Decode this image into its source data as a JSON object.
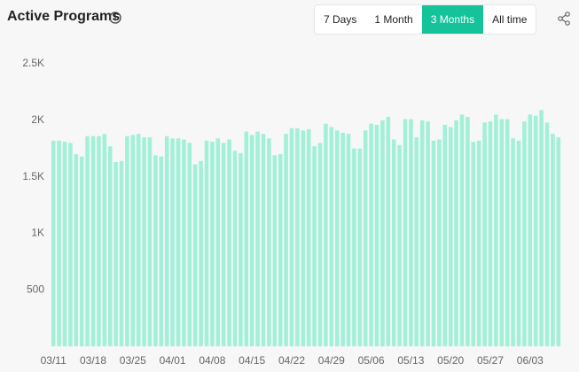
{
  "header": {
    "title": "Active Programs",
    "tabs": [
      "7 Days",
      "1 Month",
      "3 Months",
      "All time"
    ],
    "active_tab": 2
  },
  "chart_data": {
    "type": "bar",
    "color": "#a3f0d9",
    "categories": [
      "03/11",
      null,
      null,
      null,
      null,
      null,
      null,
      "03/18",
      null,
      null,
      null,
      null,
      null,
      null,
      "03/25",
      null,
      null,
      null,
      null,
      null,
      null,
      "04/01",
      null,
      null,
      null,
      null,
      null,
      null,
      "04/08",
      null,
      null,
      null,
      null,
      null,
      null,
      "04/15",
      null,
      null,
      null,
      null,
      null,
      null,
      "04/22",
      null,
      null,
      null,
      null,
      null,
      null,
      "04/29",
      null,
      null,
      null,
      null,
      null,
      null,
      "05/06",
      null,
      null,
      null,
      null,
      null,
      null,
      "05/13",
      null,
      null,
      null,
      null,
      null,
      null,
      "05/20",
      null,
      null,
      null,
      null,
      null,
      null,
      "05/27",
      null,
      null,
      null,
      null,
      null,
      null,
      "06/03",
      null,
      null,
      null,
      null,
      null
    ],
    "values": [
      1820,
      1820,
      1810,
      1800,
      1700,
      1680,
      1860,
      1860,
      1860,
      1880,
      1770,
      1630,
      1640,
      1860,
      1870,
      1880,
      1850,
      1850,
      1690,
      1680,
      1860,
      1840,
      1840,
      1830,
      1800,
      1610,
      1640,
      1820,
      1810,
      1840,
      1800,
      1830,
      1730,
      1710,
      1900,
      1870,
      1900,
      1880,
      1840,
      1690,
      1700,
      1880,
      1930,
      1930,
      1910,
      1920,
      1770,
      1800,
      1970,
      1940,
      1910,
      1890,
      1880,
      1750,
      1750,
      1910,
      1970,
      1960,
      2000,
      2030,
      1830,
      1780,
      2010,
      2010,
      1850,
      2000,
      1990,
      1820,
      1830,
      1960,
      1940,
      2000,
      2050,
      2030,
      1810,
      1820,
      1980,
      1990,
      2050,
      2010,
      2010,
      1840,
      1820,
      1990,
      2050,
      2040,
      2090,
      1980,
      1880,
      1850
    ],
    "ylim": [
      0,
      2500
    ],
    "yticks": [
      {
        "value": 500,
        "label": "500"
      },
      {
        "value": 1000,
        "label": "1K"
      },
      {
        "value": 1500,
        "label": "1.5K"
      },
      {
        "value": 2000,
        "label": "2K"
      },
      {
        "value": 2500,
        "label": "2.5K"
      }
    ]
  }
}
